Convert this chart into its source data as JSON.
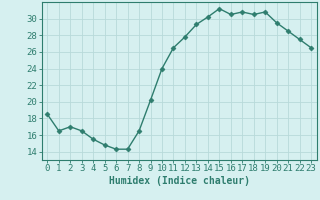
{
  "x": [
    0,
    1,
    2,
    3,
    4,
    5,
    6,
    7,
    8,
    9,
    10,
    11,
    12,
    13,
    14,
    15,
    16,
    17,
    18,
    19,
    20,
    21,
    22,
    23
  ],
  "y": [
    18.5,
    16.5,
    17.0,
    16.5,
    15.5,
    14.8,
    14.3,
    14.3,
    16.5,
    20.2,
    24.0,
    26.5,
    27.8,
    29.3,
    30.2,
    31.2,
    30.5,
    30.8,
    30.5,
    30.8,
    29.5,
    28.5,
    27.5,
    26.5
  ],
  "line_color": "#2e7d6e",
  "marker": "D",
  "marker_size": 2.5,
  "bg_color": "#d6f0f0",
  "grid_color": "#b8dada",
  "xlabel": "Humidex (Indice chaleur)",
  "ylim": [
    13,
    32
  ],
  "yticks": [
    14,
    16,
    18,
    20,
    22,
    24,
    26,
    28,
    30
  ],
  "xticks": [
    0,
    1,
    2,
    3,
    4,
    5,
    6,
    7,
    8,
    9,
    10,
    11,
    12,
    13,
    14,
    15,
    16,
    17,
    18,
    19,
    20,
    21,
    22,
    23
  ],
  "tick_color": "#2e7d6e",
  "axis_color": "#2e7d6e",
  "label_fontsize": 7,
  "tick_fontsize": 6.5
}
